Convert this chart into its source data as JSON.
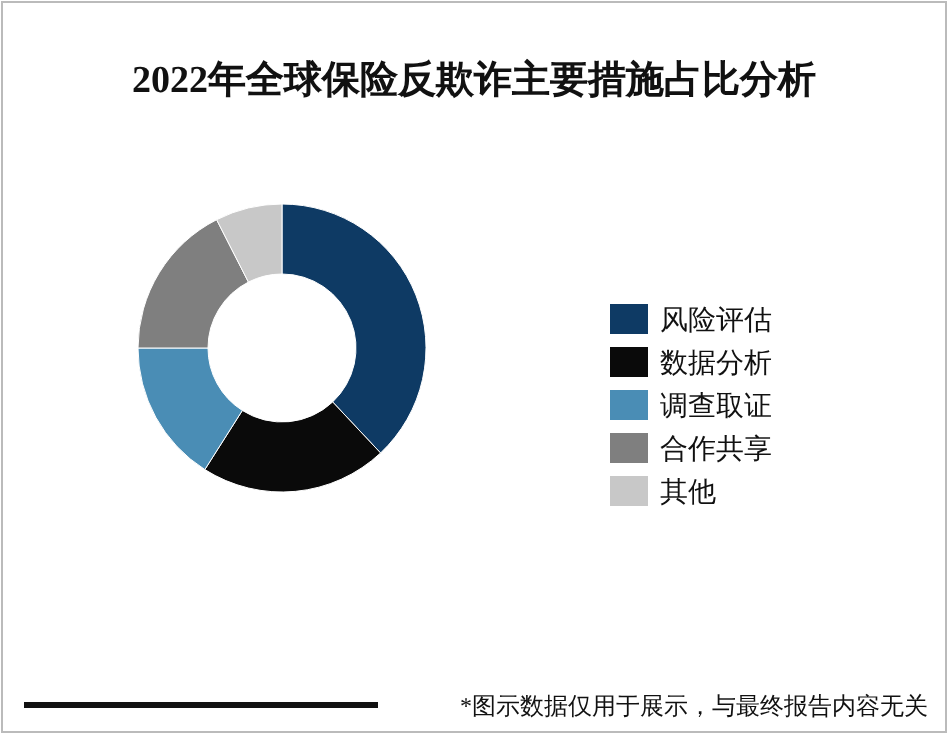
{
  "chart_data": {
    "type": "donut",
    "title": "2022年全球保险反欺诈主要措施占比分析",
    "categories": [
      "风险评估",
      "数据分析",
      "调查取证",
      "合作共享",
      "其他"
    ],
    "values": [
      38,
      21,
      16,
      17.5,
      7.5
    ],
    "colors": [
      "#0e3a64",
      "#0a0a0a",
      "#4a8db5",
      "#7f7f7f",
      "#c8c8c8"
    ],
    "legend": "right",
    "annotations": [
      "*图示数据仅用于展示，与最终报告内容无关"
    ]
  }
}
